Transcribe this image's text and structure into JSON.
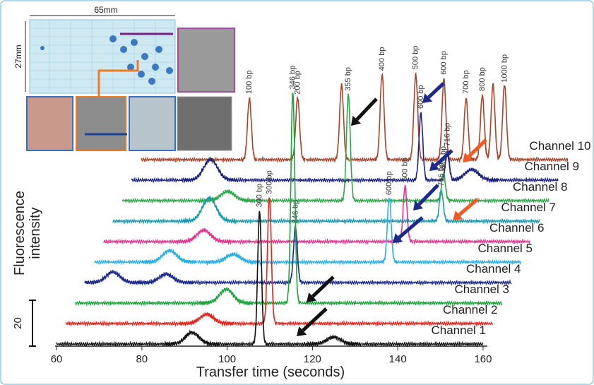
{
  "inset": {
    "width_label": "65mm",
    "height_label": "27mm"
  },
  "chart_data": {
    "type": "line",
    "xlabel": "Transfer time (seconds)",
    "ylabel": [
      "Fluorescence",
      "intensity"
    ],
    "xlim": [
      59,
      161
    ],
    "xticks": [
      60,
      80,
      100,
      120,
      140,
      160
    ],
    "scale_bar": 20,
    "series": [
      {
        "name": "Channel 1",
        "color": "#111111",
        "peak_x": [
          91.8,
          107.6,
          125.0
        ],
        "peak_height": [
          5,
          57.5,
          3
        ],
        "peak_labels": [
          null,
          "300 bp",
          null
        ]
      },
      {
        "name": "Channel 2",
        "color": "#e3231c",
        "peak_x": [
          93.0,
          107.7
        ],
        "peak_height": [
          4,
          55
        ],
        "peak_labels": [
          null,
          "300 bp"
        ]
      },
      {
        "name": "Channel 3",
        "color": "#1aa33b",
        "peak_x": [
          95.4,
          111.0
        ],
        "peak_height": [
          6,
          92
        ],
        "peak_labels": [
          null,
          "346 bp"
        ]
      },
      {
        "name": "Channel 4",
        "color": "#1c2a8c",
        "peak_x": [
          66.6,
          79.1,
          109.4
        ],
        "peak_height": [
          4.6,
          3.7,
          24
        ],
        "peak_labels": [
          null,
          null,
          "346 bp"
        ]
      },
      {
        "name": "Channel 5",
        "color": "#2aafe2",
        "peak_x": [
          77.7,
          92.6,
          129.2
        ],
        "peak_height": [
          5,
          3.4,
          28
        ],
        "peak_labels": [
          null,
          null,
          "600 bp"
        ]
      },
      {
        "name": "Channel 6",
        "color": "#e0368f",
        "peak_x": [
          83.5,
          130.7
        ],
        "peak_height": [
          5,
          24
        ],
        "peak_labels": [
          null,
          "600 bp"
        ]
      },
      {
        "name": "Channel 7",
        "color": "#1898aa",
        "peak_x": [
          82.6,
          137.0
        ],
        "peak_height": [
          10,
          13
        ],
        "peak_labels": [
          null,
          "716 bp"
        ]
      },
      {
        "name": "Channel 8",
        "color": "#2ea84a",
        "peak_x": [
          84.7,
          113.0,
          135.3
        ],
        "peak_height": [
          4,
          46,
          12
        ],
        "peak_labels": [
          null,
          "355 bp",
          "600 bp"
        ]
      },
      {
        "name": "Channel 9",
        "color": "#1a237e",
        "peak_x": [
          78.5,
          127.8,
          134.0,
          139.7
        ],
        "peak_height": [
          9,
          29,
          12,
          4.6
        ],
        "peak_labels": [
          null,
          "600 bp",
          "716 bp",
          null
        ]
      },
      {
        "name": "Channel 10",
        "color": "#a8442a",
        "peak_x": [
          85.4,
          96.7,
          107.0,
          116.5,
          124.4,
          131.0,
          136.2,
          140.0,
          142.5,
          145.2
        ],
        "peak_height": [
          26.5,
          27,
          32.6,
          37,
          37,
          35,
          26.5,
          28,
          32.6,
          32.6
        ],
        "peak_labels": [
          "100 bp",
          "200 bp",
          null,
          "400 bp",
          "500 bp",
          "600 bp",
          "700 bp",
          "800 bp",
          null,
          "1000 bp"
        ]
      }
    ]
  }
}
